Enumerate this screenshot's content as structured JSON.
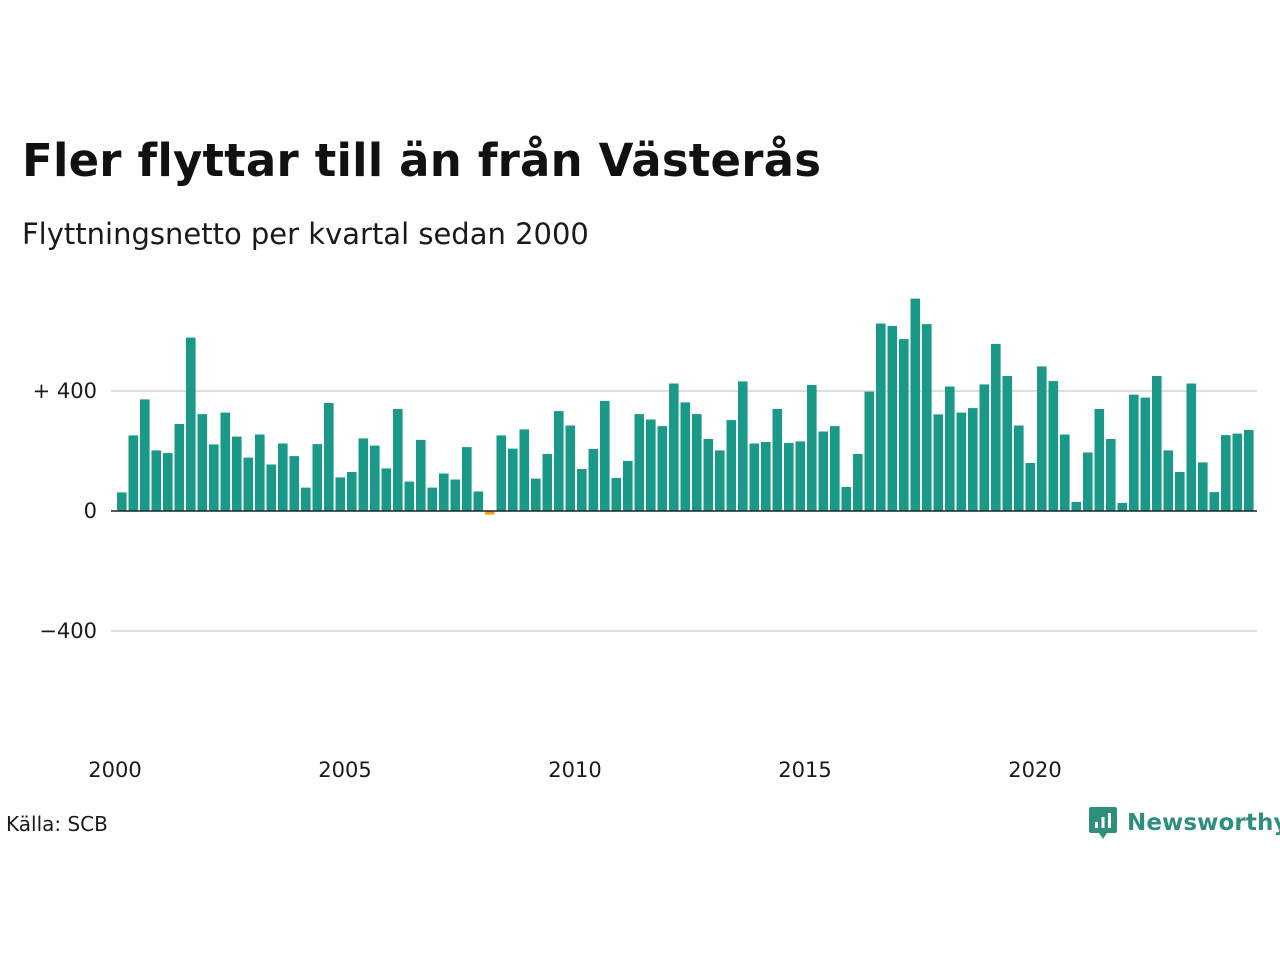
{
  "header": {
    "title": "Fler flyttar till än från Västerås",
    "subtitle": "Flyttningsnetto per kvartal sedan 2000"
  },
  "footer": {
    "source": "Källa: SCB",
    "brand": "Newsworthy"
  },
  "colors": {
    "positive": "#1a9988",
    "negative": "#e8a21a",
    "grid": "#dddddd",
    "zero_line": "#222222",
    "brand": "#2f8f7e"
  },
  "chart_data": {
    "type": "bar",
    "title": "Fler flyttar till än från Västerås",
    "subtitle": "Flyttningsnetto per kvartal sedan 2000",
    "xlabel": "",
    "ylabel": "",
    "ylim": [
      -550,
      720
    ],
    "xlim": [
      2000,
      2025
    ],
    "y_ticks": [
      {
        "value": 400,
        "label": "+ 400"
      },
      {
        "value": 0,
        "label": "0"
      },
      {
        "value": -400,
        "label": "−400"
      }
    ],
    "x_ticks": [
      {
        "value": 2000,
        "label": "2000"
      },
      {
        "value": 2005,
        "label": "2005"
      },
      {
        "value": 2010,
        "label": "2010"
      },
      {
        "value": 2015,
        "label": "2015"
      },
      {
        "value": 2020,
        "label": "2020"
      }
    ],
    "grid": true,
    "legend": "none",
    "categories": [
      "2000K1",
      "2000K2",
      "2000K3",
      "2000K4",
      "2001K1",
      "2001K2",
      "2001K3",
      "2001K4",
      "2002K1",
      "2002K2",
      "2002K3",
      "2002K4",
      "2003K1",
      "2003K2",
      "2003K3",
      "2003K4",
      "2004K1",
      "2004K2",
      "2004K3",
      "2004K4",
      "2005K1",
      "2005K2",
      "2005K3",
      "2005K4",
      "2006K1",
      "2006K2",
      "2006K3",
      "2006K4",
      "2007K1",
      "2007K2",
      "2007K3",
      "2007K4",
      "2008K1",
      "2008K2",
      "2008K3",
      "2008K4",
      "2009K1",
      "2009K2",
      "2009K3",
      "2009K4",
      "2010K1",
      "2010K2",
      "2010K3",
      "2010K4",
      "2011K1",
      "2011K2",
      "2011K3",
      "2011K4",
      "2012K1",
      "2012K2",
      "2012K3",
      "2012K4",
      "2013K1",
      "2013K2",
      "2013K3",
      "2013K4",
      "2014K1",
      "2014K2",
      "2014K3",
      "2014K4",
      "2015K1",
      "2015K2",
      "2015K3",
      "2015K4",
      "2016K1",
      "2016K2",
      "2016K3",
      "2016K4",
      "2017K1",
      "2017K2",
      "2017K3",
      "2017K4",
      "2018K1",
      "2018K2",
      "2018K3",
      "2018K4",
      "2019K1",
      "2019K2",
      "2019K3",
      "2019K4",
      "2020K1",
      "2020K2",
      "2020K3",
      "2020K4",
      "2021K1",
      "2021K2",
      "2021K3",
      "2021K4",
      "2022K1",
      "2022K2",
      "2022K3",
      "2022K4",
      "2023K1",
      "2023K2",
      "2023K3",
      "2023K4",
      "2024K1",
      "2024K2",
      "2024K3"
    ],
    "values": [
      62,
      252,
      372,
      202,
      193,
      290,
      578,
      323,
      222,
      328,
      248,
      178,
      255,
      155,
      225,
      183,
      78,
      223,
      360,
      112,
      130,
      242,
      218,
      142,
      340,
      98,
      237,
      78,
      125,
      105,
      213,
      65,
      -12,
      252,
      208,
      272,
      108,
      190,
      333,
      285,
      140,
      207,
      367,
      110,
      167,
      323,
      305,
      283,
      425,
      362,
      323,
      240,
      202,
      303,
      432,
      225,
      230,
      340,
      227,
      232,
      420,
      265,
      283,
      80,
      190,
      398,
      625,
      617,
      573,
      708,
      623,
      322,
      415,
      328,
      343,
      422,
      557,
      450,
      285,
      160,
      482,
      433,
      255,
      30,
      195,
      340,
      240,
      27,
      388,
      378,
      450,
      202,
      130,
      425,
      162,
      63,
      253,
      258,
      270
    ]
  }
}
